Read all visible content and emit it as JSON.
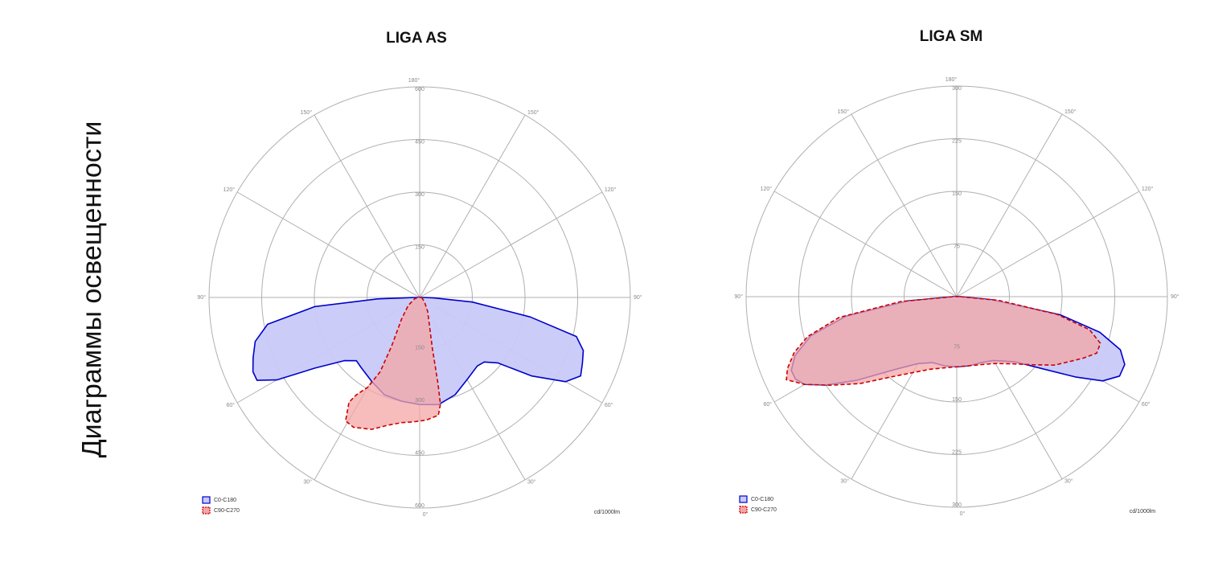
{
  "page": {
    "vertical_title": "Диаграммы освещенности"
  },
  "colors": {
    "c0": "#0000cc",
    "c0_fill": "#c8caf8",
    "c90": "#cc0000",
    "c90_fill": "#f4a6a6",
    "grid": "#b0b0b0",
    "label": "#888888"
  },
  "chart_data": [
    {
      "type": "polar",
      "title": "LIGA AS",
      "unit_label": "cd/1000lm",
      "r_max": 600,
      "rings": [
        150,
        300,
        450,
        600
      ],
      "ring_labels_top": [
        "150",
        "300",
        "450",
        "600"
      ],
      "ring_labels_bottom": [
        "150",
        "300",
        "450",
        "600"
      ],
      "angle_labels": {
        "top": "180°",
        "bottom": "0°",
        "left_90": "90°",
        "right_90": "90°",
        "left_120": "120°",
        "right_120": "120°",
        "left_150": "150°",
        "right_150": "150°",
        "left_60": "60°",
        "right_60": "60°",
        "left_30": "30°",
        "right_30": "30°"
      },
      "legend": [
        {
          "name": "C0-C180",
          "style": "solid"
        },
        {
          "name": "C90-C270",
          "style": "dashed"
        }
      ],
      "series": [
        {
          "name": "C0-C180",
          "points": [
            [
              90,
              10
            ],
            [
              88,
              40
            ],
            [
              85,
              150
            ],
            [
              80,
              320
            ],
            [
              76,
              460
            ],
            [
              72,
              490
            ],
            [
              68,
              500
            ],
            [
              64,
              510
            ],
            [
              60,
              480
            ],
            [
              55,
              390
            ],
            [
              50,
              290
            ],
            [
              45,
              260
            ],
            [
              40,
              255
            ],
            [
              30,
              270
            ],
            [
              20,
              295
            ],
            [
              10,
              310
            ],
            [
              0,
              305
            ],
            [
              -10,
              300
            ],
            [
              -20,
              295
            ],
            [
              -30,
              275
            ],
            [
              -40,
              260
            ],
            [
              -45,
              255
            ],
            [
              -50,
              280
            ],
            [
              -56,
              360
            ],
            [
              -60,
              470
            ],
            [
              -63,
              520
            ],
            [
              -66,
              520
            ],
            [
              -70,
              505
            ],
            [
              -75,
              485
            ],
            [
              -80,
              440
            ],
            [
              -85,
              300
            ],
            [
              -88,
              120
            ],
            [
              -90,
              10
            ]
          ]
        },
        {
          "name": "C90-C270",
          "points": [
            [
              90,
              5
            ],
            [
              70,
              8
            ],
            [
              45,
              20
            ],
            [
              30,
              45
            ],
            [
              20,
              80
            ],
            [
              14,
              150
            ],
            [
              12,
              250
            ],
            [
              11,
              310
            ],
            [
              9,
              340
            ],
            [
              3,
              350
            ],
            [
              -3,
              355
            ],
            [
              -8,
              360
            ],
            [
              -14,
              375
            ],
            [
              -20,
              400
            ],
            [
              -27,
              415
            ],
            [
              -31,
              410
            ],
            [
              -34,
              360
            ],
            [
              -33,
              330
            ],
            [
              -30,
              295
            ],
            [
              -28,
              240
            ],
            [
              -30,
              160
            ],
            [
              -40,
              80
            ],
            [
              -55,
              40
            ],
            [
              -75,
              15
            ],
            [
              -90,
              5
            ]
          ]
        }
      ]
    },
    {
      "type": "polar",
      "title": "LIGA SM",
      "unit_label": "cd/1000lm",
      "r_max": 300,
      "rings": [
        75,
        150,
        225,
        300
      ],
      "ring_labels_top": [
        "75",
        "150",
        "225",
        "300"
      ],
      "ring_labels_bottom": [
        "75",
        "150",
        "225",
        "300"
      ],
      "angle_labels": {
        "top": "180°",
        "bottom": "0°",
        "left_90": "90°",
        "right_90": "90°",
        "left_120": "120°",
        "right_120": "120°",
        "left_150": "150°",
        "right_150": "150°",
        "left_60": "60°",
        "right_60": "60°",
        "left_30": "30°",
        "right_30": "30°"
      },
      "legend": [
        {
          "name": "C0-C180",
          "style": "solid"
        },
        {
          "name": "C90-C270",
          "style": "dashed"
        }
      ],
      "series": [
        {
          "name": "C0-C180",
          "points": [
            [
              90,
              5
            ],
            [
              85,
              50
            ],
            [
              80,
              150
            ],
            [
              76,
              210
            ],
            [
              72,
              245
            ],
            [
              68,
              258
            ],
            [
              64,
              258
            ],
            [
              60,
              240
            ],
            [
              56,
              205
            ],
            [
              50,
              160
            ],
            [
              42,
              125
            ],
            [
              30,
              105
            ],
            [
              20,
              100
            ],
            [
              10,
              100
            ],
            [
              0,
              100
            ],
            [
              -10,
              100
            ],
            [
              -20,
              100
            ],
            [
              -30,
              110
            ],
            [
              -40,
              135
            ],
            [
              -50,
              185
            ],
            [
              -56,
              225
            ],
            [
              -60,
              250
            ],
            [
              -63,
              258
            ],
            [
              -66,
              258
            ],
            [
              -70,
              245
            ],
            [
              -75,
              215
            ],
            [
              -80,
              160
            ],
            [
              -85,
              70
            ],
            [
              -90,
              5
            ]
          ]
        },
        {
          "name": "C90-C270",
          "points": [
            [
              90,
              5
            ],
            [
              85,
              60
            ],
            [
              80,
              145
            ],
            [
              76,
              195
            ],
            [
              72,
              215
            ],
            [
              68,
              215
            ],
            [
              64,
              200
            ],
            [
              60,
              185
            ],
            [
              55,
              170
            ],
            [
              48,
              145
            ],
            [
              40,
              125
            ],
            [
              30,
              110
            ],
            [
              20,
              103
            ],
            [
              10,
              100
            ],
            [
              0,
              100
            ],
            [
              -10,
              103
            ],
            [
              -20,
              110
            ],
            [
              -30,
              125
            ],
            [
              -40,
              150
            ],
            [
              -48,
              185
            ],
            [
              -55,
              220
            ],
            [
              -60,
              250
            ],
            [
              -64,
              270
            ],
            [
              -67,
              262
            ],
            [
              -71,
              245
            ],
            [
              -75,
              220
            ],
            [
              -80,
              170
            ],
            [
              -85,
              80
            ],
            [
              -90,
              5
            ]
          ]
        }
      ]
    }
  ]
}
